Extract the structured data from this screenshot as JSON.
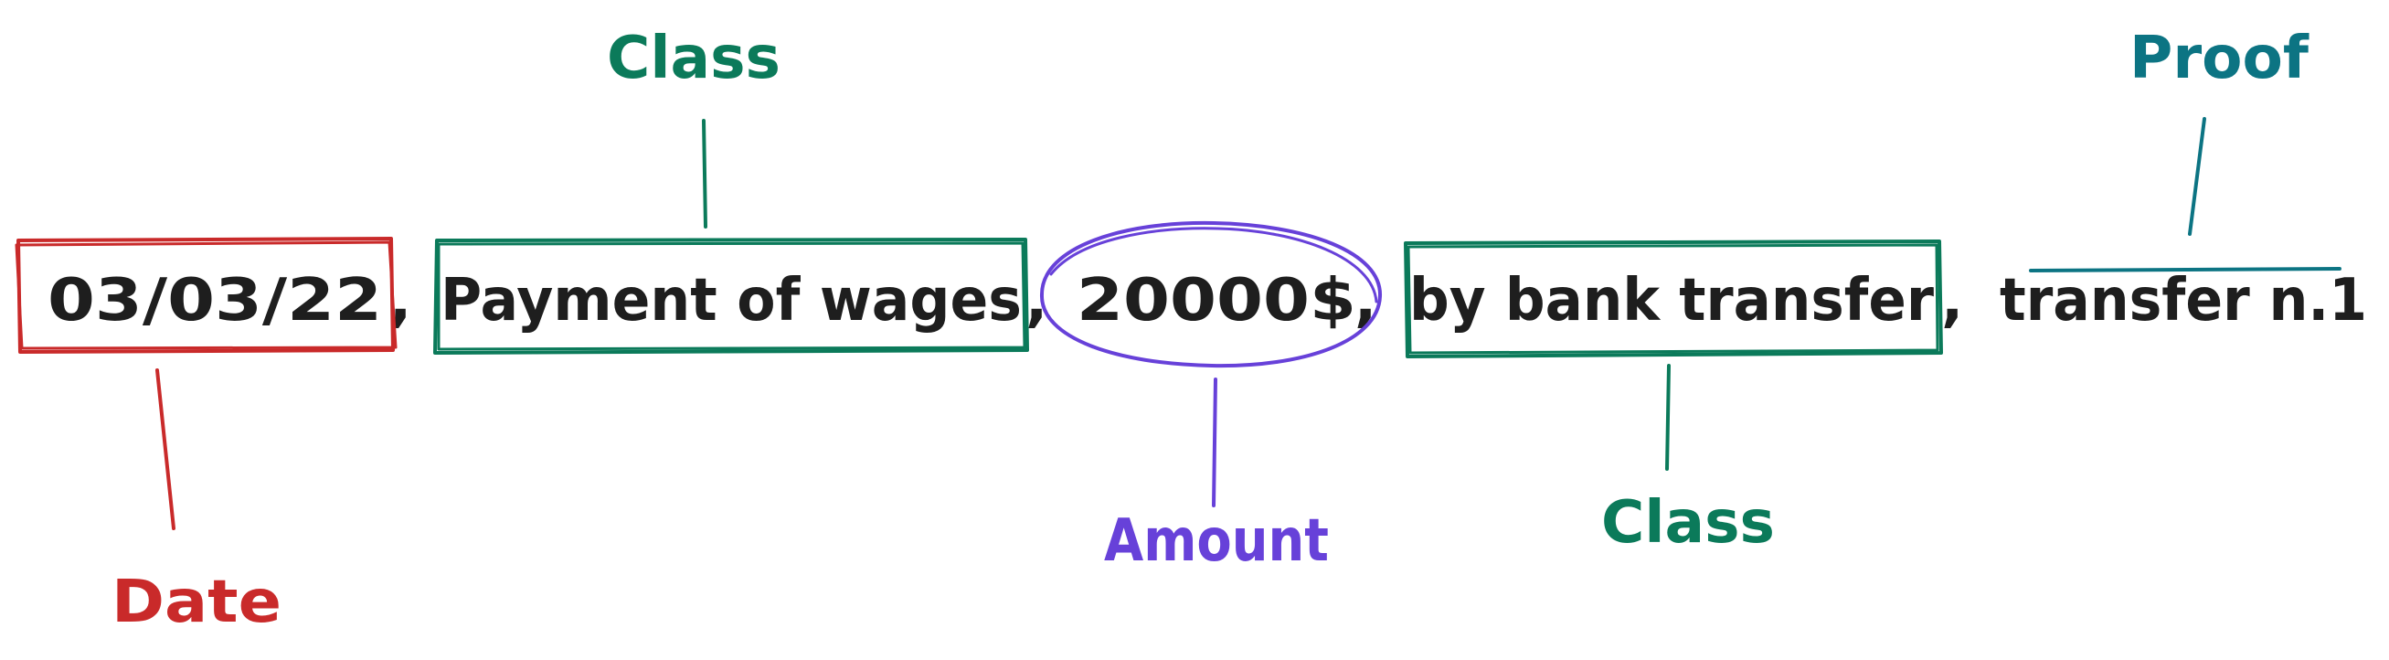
{
  "colors": {
    "text": "#1e1e1e",
    "date": "#c92a2a",
    "class": "#0b7a5a",
    "amount": "#6741d9",
    "proof": "#0c7483",
    "background": "#ffffff"
  },
  "sentence": {
    "date": "03/03/22",
    "sep1": ",",
    "class1": "Payment of wages",
    "sep2": ",",
    "amount": "20000$",
    "sep3": ",",
    "class2": "by bank transfer",
    "sep4": ",",
    "proof": "transfer n.1"
  },
  "annotations": {
    "date_label": "Date",
    "class_label_top": "Class",
    "amount_label": "Amount",
    "class_label_bottom": "Class",
    "proof_label": "Proof"
  }
}
